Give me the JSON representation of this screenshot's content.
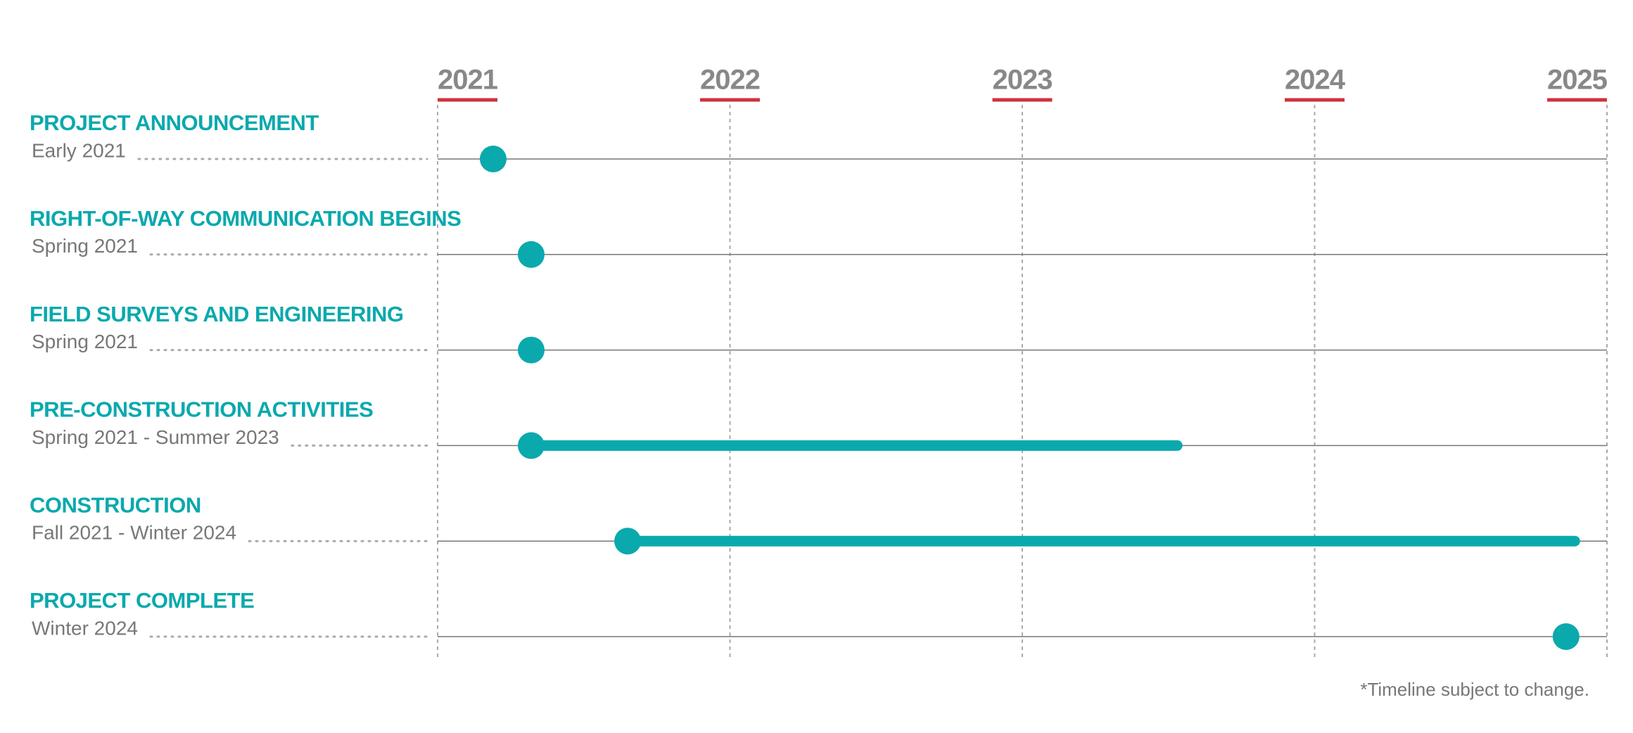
{
  "chart_data": {
    "type": "timeline",
    "xlim": [
      2021,
      2025
    ],
    "xticks": [
      2021,
      2022,
      2023,
      2024,
      2025
    ],
    "color": "#0aa9ad",
    "grid": true,
    "tasks": [
      {
        "name": "PROJECT ANNOUNCEMENT",
        "date_label": "Early 2021",
        "values": [
          2021.19
        ]
      },
      {
        "name": "RIGHT-OF-WAY COMMUNICATION BEGINS",
        "date_label": "Spring 2021",
        "values": [
          2021.32
        ]
      },
      {
        "name": "FIELD SURVEYS AND ENGINEERING",
        "date_label": "Spring 2021",
        "values": [
          2021.32
        ]
      },
      {
        "name": "PRE-CONSTRUCTION ACTIVITIES",
        "date_label": "Spring 2021 - Summer 2023",
        "values": [
          2021.32,
          2023.53
        ]
      },
      {
        "name": "CONSTRUCTION",
        "date_label": "Fall 2021 - Winter 2024",
        "values": [
          2021.65,
          2024.89
        ]
      },
      {
        "name": "PROJECT COMPLETE",
        "date_label": "Winter 2024",
        "values": [
          2024.86
        ]
      }
    ],
    "footnote": "*Timeline subject to change."
  }
}
